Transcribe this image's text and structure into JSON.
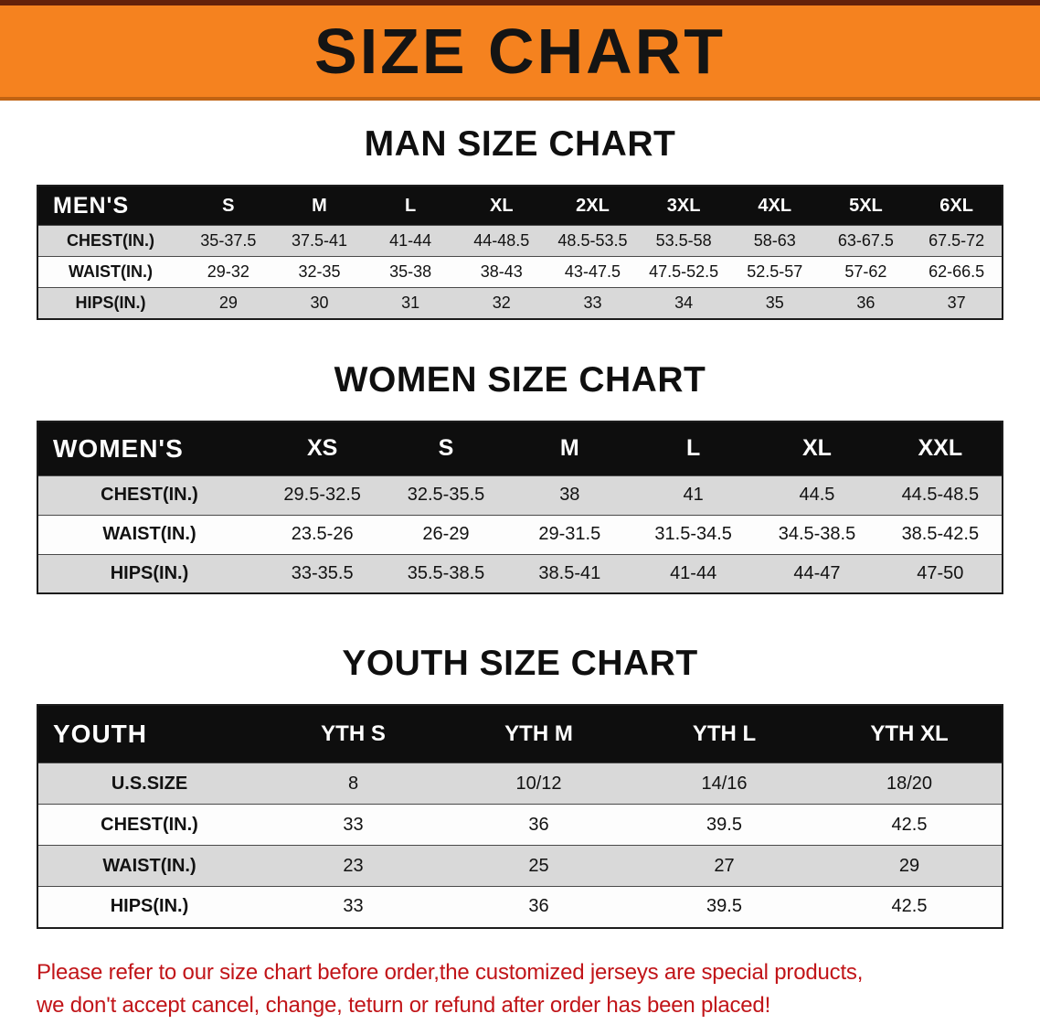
{
  "banner": {
    "title": "SIZE CHART"
  },
  "colors": {
    "banner_orange": "#f5821f",
    "header_black": "#0e0e0e",
    "stripe_gray": "#d9d9d9",
    "disclaimer_red": "#c11418"
  },
  "sections": [
    {
      "heading": "MAN SIZE CHART",
      "table": {
        "header": [
          "MEN'S",
          "S",
          "M",
          "L",
          "XL",
          "2XL",
          "3XL",
          "4XL",
          "5XL",
          "6XL"
        ],
        "rows": [
          [
            "CHEST(IN.)",
            "35-37.5",
            "37.5-41",
            "41-44",
            "44-48.5",
            "48.5-53.5",
            "53.5-58",
            "58-63",
            "63-67.5",
            "67.5-72"
          ],
          [
            "WAIST(IN.)",
            "29-32",
            "32-35",
            "35-38",
            "38-43",
            "43-47.5",
            "47.5-52.5",
            "52.5-57",
            "57-62",
            "62-66.5"
          ],
          [
            "HIPS(IN.)",
            "29",
            "30",
            "31",
            "32",
            "33",
            "34",
            "35",
            "36",
            "37"
          ]
        ]
      }
    },
    {
      "heading": "WOMEN SIZE CHART",
      "table": {
        "header": [
          "WOMEN'S",
          "XS",
          "S",
          "M",
          "L",
          "XL",
          "XXL"
        ],
        "rows": [
          [
            "CHEST(IN.)",
            "29.5-32.5",
            "32.5-35.5",
            "38",
            "41",
            "44.5",
            "44.5-48.5"
          ],
          [
            "WAIST(IN.)",
            "23.5-26",
            "26-29",
            "29-31.5",
            "31.5-34.5",
            "34.5-38.5",
            "38.5-42.5"
          ],
          [
            "HIPS(IN.)",
            "33-35.5",
            "35.5-38.5",
            "38.5-41",
            "41-44",
            "44-47",
            "47-50"
          ]
        ]
      }
    },
    {
      "heading": "YOUTH SIZE CHART",
      "table": {
        "header": [
          "YOUTH",
          "YTH S",
          "YTH M",
          "YTH L",
          "YTH XL"
        ],
        "rows": [
          [
            "U.S.SIZE",
            "8",
            "10/12",
            "14/16",
            "18/20"
          ],
          [
            "CHEST(IN.)",
            "33",
            "36",
            "39.5",
            "42.5"
          ],
          [
            "WAIST(IN.)",
            "23",
            "25",
            "27",
            "29"
          ],
          [
            "HIPS(IN.)",
            "33",
            "36",
            "39.5",
            "42.5"
          ]
        ]
      }
    }
  ],
  "disclaimer": {
    "line1": "Please refer to our size chart before order,the customized jerseys are special products,",
    "line2": "we don't accept cancel, change, teturn or refund after order has been placed!"
  }
}
